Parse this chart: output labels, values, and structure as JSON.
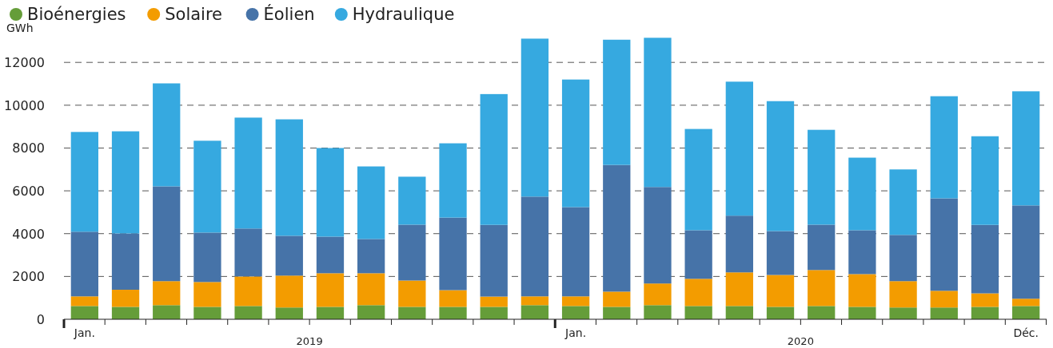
{
  "chart_data": {
    "type": "bar",
    "stacked": true,
    "ylabel": "GWh",
    "categories": [
      "Jan.",
      null,
      null,
      null,
      null,
      null,
      null,
      null,
      null,
      null,
      null,
      null,
      "Jan.",
      null,
      null,
      null,
      null,
      null,
      null,
      null,
      null,
      null,
      null,
      "Déc."
    ],
    "series": [
      {
        "name": "Bioénergies",
        "color": "#659d39",
        "values": [
          620,
          580,
          660,
          580,
          620,
          550,
          580,
          660,
          580,
          580,
          580,
          660,
          620,
          580,
          660,
          620,
          620,
          580,
          620,
          580,
          550,
          550,
          580,
          620
        ]
      },
      {
        "name": "Solaire",
        "color": "#f39c00",
        "values": [
          450,
          800,
          1120,
          1160,
          1380,
          1490,
          1570,
          1490,
          1230,
          780,
          480,
          410,
          450,
          710,
          1010,
          1270,
          1570,
          1490,
          1680,
          1530,
          1230,
          780,
          630,
          340
        ]
      },
      {
        "name": "Éolien",
        "color": "#4673a8",
        "values": [
          3020,
          2630,
          4430,
          2310,
          2240,
          1860,
          1710,
          1600,
          2610,
          3390,
          3350,
          4660,
          4170,
          5920,
          4510,
          2270,
          2650,
          2050,
          2120,
          2050,
          2160,
          4320,
          3200,
          4360
        ]
      },
      {
        "name": "Hydraulique",
        "color": "#36a9e0",
        "values": [
          4660,
          4770,
          4810,
          4290,
          5180,
          5440,
          4140,
          3390,
          2240,
          3470,
          6110,
          7380,
          5960,
          5850,
          6970,
          4730,
          6260,
          6070,
          4430,
          3390,
          3060,
          4770,
          4140,
          5330
        ]
      }
    ],
    "ylim": [
      0,
      13200
    ],
    "yticks": [
      0,
      2000,
      4000,
      6000,
      8000,
      10000,
      12000
    ],
    "grid": "y",
    "legend": "top left",
    "annotations": [
      "2019",
      "2020"
    ]
  }
}
